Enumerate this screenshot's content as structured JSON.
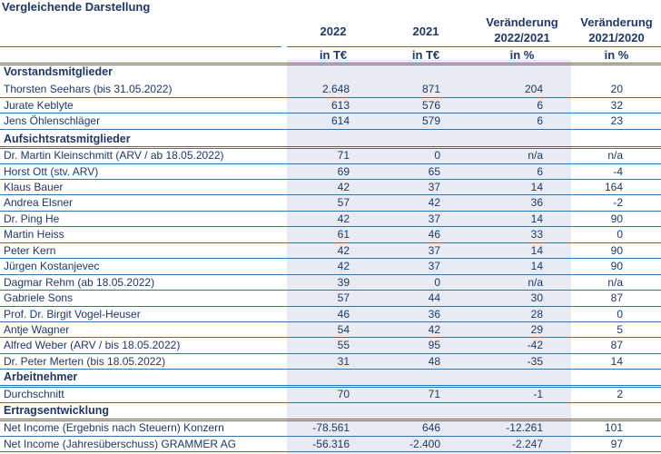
{
  "title": "Vergleichende Darstellung",
  "headers": {
    "col1": "2022",
    "col2": "2021",
    "col3a": "Veränderung",
    "col3b": "2022/2021",
    "col4a": "Veränderung",
    "col4b": "2021/2020"
  },
  "units": {
    "col1": "in T€",
    "col2": "in T€",
    "col3": "in %",
    "col4": "in %"
  },
  "sections": {
    "vorstand": "Vorstandsmitglieder",
    "aufsichtsrat": "Aufsichtsratsmitglieder",
    "arbeitnehmer": "Arbeitnehmer",
    "ertrag": "Ertragsentwicklung"
  },
  "rows": [
    {
      "label": "Thorsten Seehars (bis 31.05.2022)",
      "v2022": "2.648",
      "v2021": "871",
      "ch1": "204",
      "ch2": "20"
    },
    {
      "label": "Jurate Keblyte",
      "v2022": "613",
      "v2021": "576",
      "ch1": "6",
      "ch2": "32"
    },
    {
      "label": "Jens Öhlenschläger",
      "v2022": "614",
      "v2021": "579",
      "ch1": "6",
      "ch2": "23"
    },
    {
      "label": "Dr. Martin Kleinschmitt (ARV / ab 18.05.2022)",
      "v2022": "71",
      "v2021": "0",
      "ch1": "n/a",
      "ch2": "n/a"
    },
    {
      "label": "Horst Ott (stv. ARV)",
      "v2022": "69",
      "v2021": "65",
      "ch1": "6",
      "ch2": "-4"
    },
    {
      "label": "Klaus Bauer",
      "v2022": "42",
      "v2021": "37",
      "ch1": "14",
      "ch2": "164"
    },
    {
      "label": "Andrea Elsner",
      "v2022": "57",
      "v2021": "42",
      "ch1": "36",
      "ch2": "-2"
    },
    {
      "label": "Dr. Ping He",
      "v2022": "42",
      "v2021": "37",
      "ch1": "14",
      "ch2": "90"
    },
    {
      "label": "Martin Heiss",
      "v2022": "61",
      "v2021": "46",
      "ch1": "33",
      "ch2": "0"
    },
    {
      "label": "Peter Kern",
      "v2022": "42",
      "v2021": "37",
      "ch1": "14",
      "ch2": "90"
    },
    {
      "label": "Jürgen Kostanjevec",
      "v2022": "42",
      "v2021": "37",
      "ch1": "14",
      "ch2": "90"
    },
    {
      "label": "Dagmar Rehm (ab 18.05.2022)",
      "v2022": "39",
      "v2021": "0",
      "ch1": "n/a",
      "ch2": "n/a"
    },
    {
      "label": "Gabriele Sons",
      "v2022": "57",
      "v2021": "44",
      "ch1": "30",
      "ch2": "87"
    },
    {
      "label": "Prof. Dr. Birgit Vogel-Heuser",
      "v2022": "46",
      "v2021": "36",
      "ch1": "28",
      "ch2": "0"
    },
    {
      "label": "Antje Wagner",
      "v2022": "54",
      "v2021": "42",
      "ch1": "29",
      "ch2": "5"
    },
    {
      "label": "Alfred Weber (ARV / bis 18.05.2022)",
      "v2022": "55",
      "v2021": "95",
      "ch1": "-42",
      "ch2": "87"
    },
    {
      "label": "Dr. Peter Merten (bis 18.05.2022)",
      "v2022": "31",
      "v2021": "48",
      "ch1": "-35",
      "ch2": "14"
    },
    {
      "label": "Durchschnitt",
      "v2022": "70",
      "v2021": "71",
      "ch1": "-1",
      "ch2": "2"
    },
    {
      "label": "Net Income (Ergebnis nach Steuern) Konzern",
      "v2022": "-78.561",
      "v2021": "646",
      "ch1": "-12.261",
      "ch2": "101"
    },
    {
      "label": "Net Income (Jahresüberschuss) GRAMMER AG",
      "v2022": "-56.316",
      "v2021": "-2.400",
      "ch1": "-2.247",
      "ch2": "97"
    }
  ],
  "colors": {
    "text": "#1f3864",
    "rule": "#2e75b6",
    "highlight": "#e8ebf3"
  }
}
